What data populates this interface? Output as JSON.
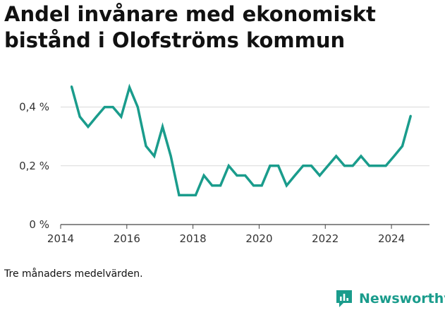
{
  "title": "Andel invånare med ekonomiskt bistånd i Olofströms kommun",
  "caption": "Tre månaders medelvärden.",
  "brand": {
    "name": "Newsworthy",
    "icon": "newsworthy-logo-icon",
    "color": "#1a9c8c"
  },
  "chart_data": {
    "type": "line",
    "title": "Andel invånare med ekonomiskt bistånd i Olofströms kommun",
    "xlabel": "",
    "ylabel": "",
    "xlim": [
      2014.0,
      2025.15
    ],
    "ylim": [
      0,
      0.5
    ],
    "yticks": [
      0,
      0.2,
      0.4
    ],
    "ytick_labels": [
      "0 %",
      "0,2 %",
      "0,4 %"
    ],
    "xticks": [
      2014,
      2016,
      2018,
      2020,
      2022,
      2024
    ],
    "xtick_labels": [
      "2014",
      "2016",
      "2018",
      "2020",
      "2022",
      "2024"
    ],
    "grid": true,
    "line_color": "#1a9c8c",
    "series": [
      {
        "x": [
          2014.33,
          2014.58,
          2014.83,
          2015.08,
          2015.33,
          2015.58,
          2015.83,
          2016.08,
          2016.33,
          2016.58,
          2016.83,
          2017.08,
          2017.33,
          2017.58,
          2017.83,
          2018.08,
          2018.33,
          2018.58,
          2018.83,
          2019.08,
          2019.33,
          2019.58,
          2019.83,
          2020.08,
          2020.33,
          2020.58,
          2020.83,
          2021.08,
          2021.33,
          2021.58,
          2021.83,
          2022.08,
          2022.33,
          2022.58,
          2022.83,
          2023.08,
          2023.33,
          2023.58,
          2023.83,
          2024.08,
          2024.33,
          2024.58
        ],
        "y": [
          0.47,
          0.367,
          0.333,
          0.367,
          0.4,
          0.4,
          0.367,
          0.467,
          0.4,
          0.267,
          0.233,
          0.333,
          0.233,
          0.1,
          0.1,
          0.1,
          0.167,
          0.133,
          0.133,
          0.2,
          0.167,
          0.167,
          0.133,
          0.133,
          0.2,
          0.2,
          0.133,
          0.167,
          0.2,
          0.2,
          0.167,
          0.2,
          0.233,
          0.2,
          0.2,
          0.233,
          0.2,
          0.2,
          0.2,
          0.233,
          0.267,
          0.37
        ]
      }
    ]
  }
}
